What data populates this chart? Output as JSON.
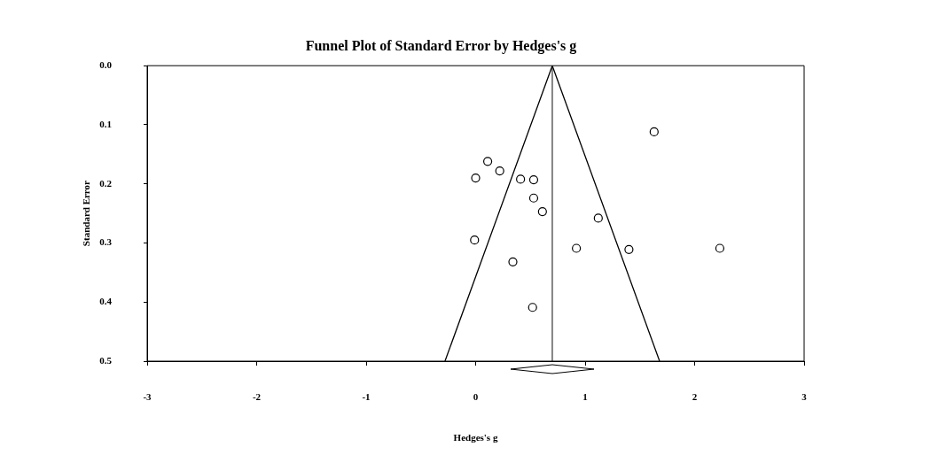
{
  "chart_data": {
    "type": "scatter",
    "title": "Funnel Plot of Standard Error by Hedges's g",
    "xlabel": "Hedges's g",
    "ylabel": "Standard Error",
    "xlim": [
      -3,
      3
    ],
    "xticks": [
      -3,
      -2,
      -1,
      0,
      1,
      2,
      3
    ],
    "ylim": [
      0.5,
      0
    ],
    "yticks": [
      {
        "value": 0,
        "label": "0.0"
      },
      0.1,
      0.2,
      0.3,
      0.4,
      0.5
    ],
    "grid": false,
    "legend": false,
    "marker": "circle",
    "series": [
      {
        "type": "scatter",
        "color": "#000000",
        "x": [
          1.63,
          0.11,
          0.22,
          0.0,
          0.41,
          0.53,
          0.53,
          0.61,
          1.12,
          -0.01,
          0.92,
          1.4,
          2.23,
          0.34,
          0.52
        ],
        "values": [
          0.112,
          0.162,
          0.178,
          0.19,
          0.192,
          0.193,
          0.224,
          0.247,
          0.258,
          0.295,
          0.309,
          0.311,
          0.309,
          0.332,
          0.409
        ]
      },
      {
        "type": "line",
        "color": "#000000",
        "marker": "none",
        "x": [
          -0.28,
          0.7,
          1.68
        ],
        "values": [
          0.5,
          0,
          0.5
        ]
      }
    ],
    "ref_lines": [
      {
        "axis": "x",
        "value": 0.7,
        "color": "#444444"
      }
    ]
  }
}
